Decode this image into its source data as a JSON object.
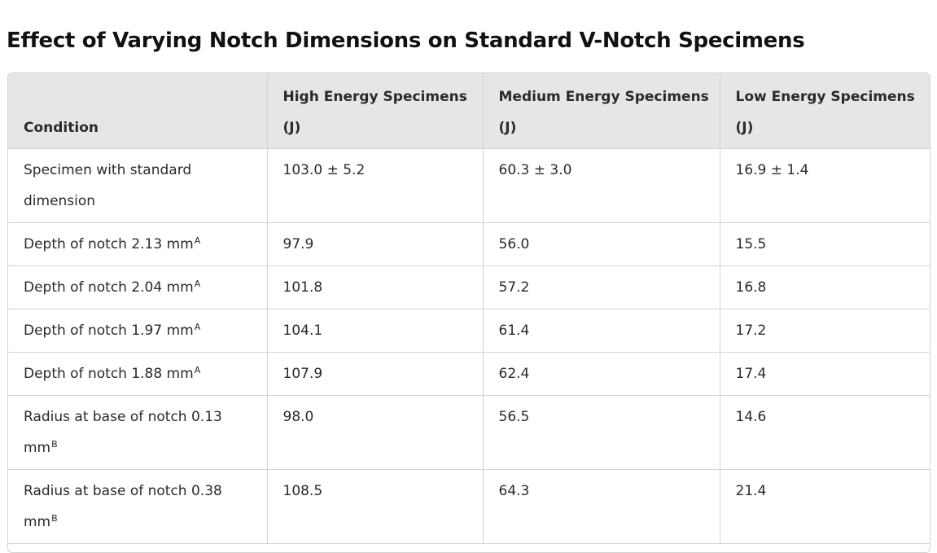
{
  "title": "Effect of Varying Notch Dimensions on Standard V-Notch Specimens",
  "table": {
    "headers": [
      "Condition",
      "High Energy Specimens (J)",
      "Medium Energy Specimens (J)",
      "Low Energy Specimens (J)"
    ],
    "rows": [
      {
        "condition": "Specimen with standard dimension",
        "note": "",
        "high": "103.0 ± 5.2",
        "medium": "60.3 ± 3.0",
        "low": "16.9 ± 1.4"
      },
      {
        "condition": "Depth of notch 2.13 mm",
        "note": "A",
        "high": "97.9",
        "medium": "56.0",
        "low": "15.5"
      },
      {
        "condition": "Depth of notch 2.04 mm",
        "note": "A",
        "high": "101.8",
        "medium": "57.2",
        "low": "16.8"
      },
      {
        "condition": "Depth of notch 1.97 mm",
        "note": "A",
        "high": "104.1",
        "medium": "61.4",
        "low": "17.2"
      },
      {
        "condition": "Depth of notch 1.88 mm",
        "note": "A",
        "high": "107.9",
        "medium": "62.4",
        "low": "17.4"
      },
      {
        "condition": "Radius at base of notch 0.13 mm",
        "note": "B",
        "high": "98.0",
        "medium": "56.5",
        "low": "14.6"
      },
      {
        "condition": "Radius at base of notch 0.38 mm",
        "note": "B",
        "high": "108.5",
        "medium": "64.3",
        "low": "21.4"
      }
    ]
  }
}
